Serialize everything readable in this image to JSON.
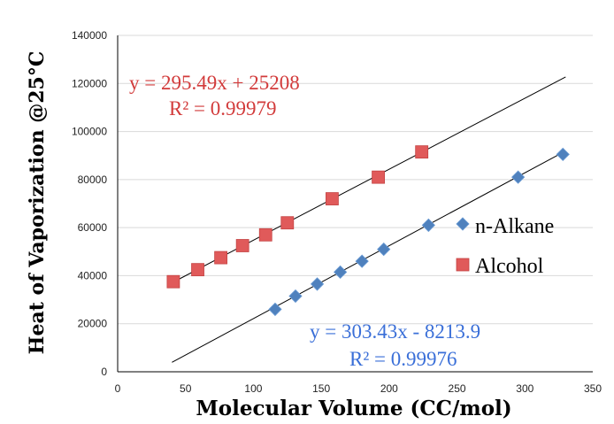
{
  "chart_data": {
    "type": "scatter",
    "xlabel": "Molecular Volume (CC/mol)",
    "ylabel": "Heat of Vaporization @25°C",
    "xlim": [
      0,
      350
    ],
    "ylim": [
      0,
      140000
    ],
    "x_ticks": [
      0,
      50,
      100,
      150,
      200,
      250,
      300,
      350
    ],
    "y_ticks": [
      0,
      20000,
      40000,
      60000,
      80000,
      100000,
      120000,
      140000
    ],
    "x_tick_labels": [
      "0",
      "50",
      "100",
      "150",
      "200",
      "250",
      "300",
      "350"
    ],
    "y_tick_labels": [
      "0",
      "20000",
      "40000",
      "60000",
      "80000",
      "100000",
      "120000",
      "140000"
    ],
    "grid": "horizontal",
    "legend_position": "right",
    "series": [
      {
        "name": "n-Alkane",
        "marker": "diamond",
        "color": "#4f81bd",
        "x": [
          116,
          131,
          147,
          164,
          180,
          196,
          229,
          295,
          328
        ],
        "y": [
          26000,
          31500,
          36500,
          41500,
          46000,
          51000,
          61000,
          81000,
          90500
        ],
        "trendline": {
          "slope": 303.43,
          "intercept": -8213.9,
          "x_range": [
            40,
            330
          ],
          "equation": "y = 303.43x - 8213.9",
          "r2": "R² = 0.99976",
          "color": "#3a6fd8"
        }
      },
      {
        "name": "Alcohol",
        "marker": "square",
        "color": "#e05a5a",
        "x": [
          41,
          59,
          76,
          92,
          109,
          125,
          158,
          192,
          224
        ],
        "y": [
          37500,
          42500,
          47500,
          52500,
          57000,
          62000,
          72000,
          81000,
          91500
        ],
        "trendline": {
          "slope": 295.49,
          "intercept": 25208,
          "x_range": [
            40,
            330
          ],
          "equation": "y = 295.49x + 25208",
          "r2": "R² = 0.99979",
          "color": "#d23b3b"
        }
      }
    ]
  }
}
